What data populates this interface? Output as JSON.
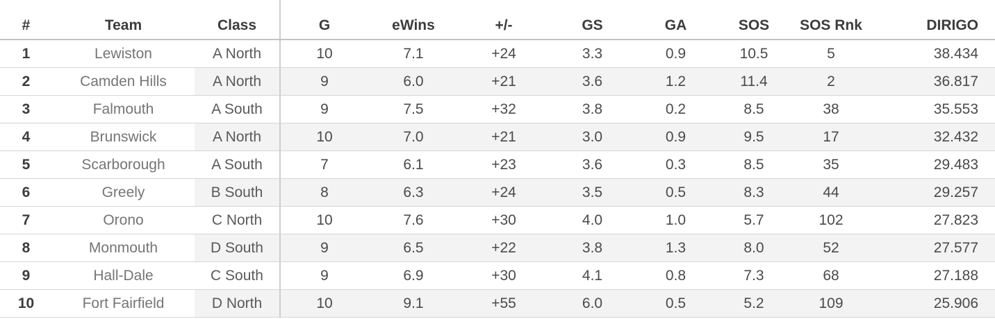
{
  "chart_data": {
    "type": "table",
    "columns": [
      "#",
      "Team",
      "Class",
      "G",
      "eWins",
      "+/-",
      "GS",
      "GA",
      "SOS",
      "SOS Rnk",
      "DIRIGO"
    ],
    "column_keys": [
      "rank",
      "team",
      "class",
      "games",
      "ewins",
      "plus-minus",
      "gs",
      "ga",
      "sos",
      "sos-rnk",
      "dirigo"
    ],
    "rows": [
      [
        "1",
        "Lewiston",
        "A North",
        "10",
        "7.1",
        "+24",
        "3.3",
        "0.9",
        "10.5",
        "5",
        "38.434"
      ],
      [
        "2",
        "Camden Hills",
        "A North",
        "9",
        "6.0",
        "+21",
        "3.6",
        "1.2",
        "11.4",
        "2",
        "36.817"
      ],
      [
        "3",
        "Falmouth",
        "A South",
        "9",
        "7.5",
        "+32",
        "3.8",
        "0.2",
        "8.5",
        "38",
        "35.553"
      ],
      [
        "4",
        "Brunswick",
        "A North",
        "10",
        "7.0",
        "+21",
        "3.0",
        "0.9",
        "9.5",
        "17",
        "32.432"
      ],
      [
        "5",
        "Scarborough",
        "A South",
        "7",
        "6.1",
        "+23",
        "3.6",
        "0.3",
        "8.5",
        "35",
        "29.483"
      ],
      [
        "6",
        "Greely",
        "B South",
        "8",
        "6.3",
        "+24",
        "3.5",
        "0.5",
        "8.3",
        "44",
        "29.257"
      ],
      [
        "7",
        "Orono",
        "C North",
        "10",
        "7.6",
        "+30",
        "4.0",
        "1.0",
        "5.7",
        "102",
        "27.823"
      ],
      [
        "8",
        "Monmouth",
        "D South",
        "9",
        "6.5",
        "+22",
        "3.8",
        "1.3",
        "8.0",
        "52",
        "27.577"
      ],
      [
        "9",
        "Hall-Dale",
        "C South",
        "9",
        "6.9",
        "+30",
        "4.1",
        "0.8",
        "7.3",
        "68",
        "27.188"
      ],
      [
        "10",
        "Fort Fairfield",
        "D North",
        "10",
        "9.1",
        "+55",
        "6.0",
        "0.5",
        "5.2",
        "109",
        "25.906"
      ]
    ],
    "layout_hints": {
      "banded_rows": "even ranks shaded from Class column rightward",
      "divider_after_column": "Class"
    }
  },
  "colors": {
    "background": "#ffffff",
    "row_band": "#f3f3f3",
    "row_border": "#d5d5d5",
    "header_border": "#c2c2c2",
    "column_divider": "#cdcdcd",
    "header_text": "#3c3c3c",
    "rank_text": "#3c3c3c",
    "team_text": "#757575",
    "class_text": "#5a5a5a",
    "value_text": "#4a4a4a"
  }
}
